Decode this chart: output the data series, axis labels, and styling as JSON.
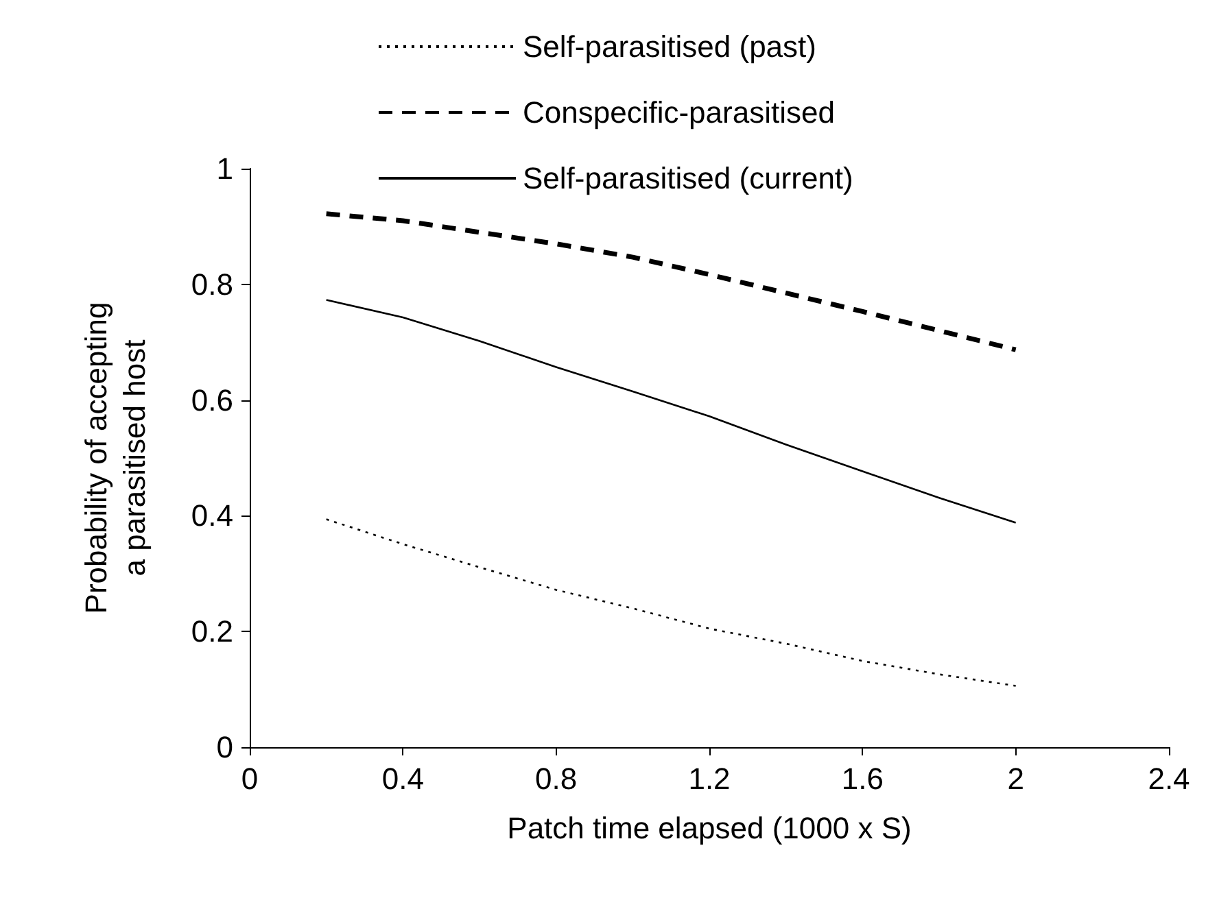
{
  "chart_data": {
    "type": "line",
    "xlabel": "Patch time elapsed (1000 x S)",
    "ylabel": "Probability of accepting a parasitised host",
    "x": [
      0.2,
      0.4,
      0.6,
      0.8,
      1.0,
      1.2,
      1.4,
      1.6,
      1.8,
      2.0
    ],
    "series": [
      {
        "name": "Self-parasitised (past)",
        "color": "#000000",
        "line_style": "dotted",
        "values": [
          0.394,
          0.351,
          0.311,
          0.272,
          0.24,
          0.205,
          0.179,
          0.149,
          0.126,
          0.106
        ]
      },
      {
        "name": "Conspecific-parasitised",
        "color": "#000000",
        "line_style": "dashed",
        "values": [
          0.922,
          0.91,
          0.89,
          0.87,
          0.847,
          0.817,
          0.785,
          0.753,
          0.72,
          0.687
        ]
      },
      {
        "name": "Self-parasitised (current)",
        "color": "#000000",
        "line_style": "solid",
        "values": [
          0.773,
          0.743,
          0.702,
          0.657,
          0.615,
          0.572,
          0.523,
          0.477,
          0.431,
          0.388
        ]
      }
    ],
    "xlim": [
      0,
      2.4
    ],
    "xticks": [
      0,
      0.4,
      0.8,
      1.2,
      1.6,
      2,
      2.4
    ],
    "ylim": [
      0,
      1
    ],
    "yticks": [
      0,
      0.2,
      0.4,
      0.6,
      0.8,
      1
    ],
    "grid": false,
    "legend": "top",
    "marker": "none"
  }
}
